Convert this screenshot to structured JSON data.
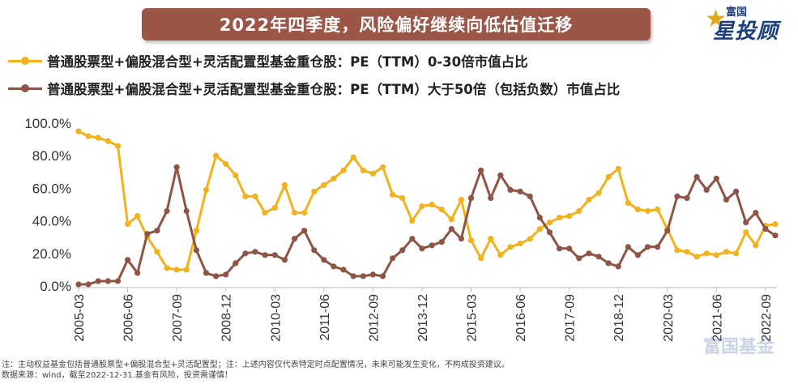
{
  "title": "2022年四季度，风险偏好继续向低估值迁移",
  "logo": {
    "top": "富国",
    "main": "星投顾",
    "watermark": "富国基金"
  },
  "colors": {
    "series1": "#f2b21c",
    "series2": "#8e5446",
    "banner": "#9c5648"
  },
  "notes": [
    "注：主动权益基金包括普通股票型+偏股混合型+灵活配置型；注：上述内容仅代表特定时点配置情况，未来可能发生变化，不构成投资建议。",
    "数据来源：wind，截至2022-12-31.基金有风险，投资需谨慎！"
  ],
  "chart_data": {
    "type": "line",
    "title": "2022年四季度，风险偏好继续向低估值迁移",
    "xlabel": "",
    "ylabel": "",
    "ylim": [
      0,
      100
    ],
    "y_ticks": [
      "0.0%",
      "20.0%",
      "40.0%",
      "60.0%",
      "80.0%",
      "100.0%"
    ],
    "x_tick_labels": [
      "2005-03",
      "2006-06",
      "2007-09",
      "2008-12",
      "2010-03",
      "2011-06",
      "2012-09",
      "2013-12",
      "2015-03",
      "2016-06",
      "2017-09",
      "2018-12",
      "2020-03",
      "2021-06",
      "2022-09"
    ],
    "x_start": "2005-03",
    "x_end": "2022-12",
    "series": [
      {
        "name": "普通股票型+偏股混合型+灵活配置型基金重仓股：PE（TTM）0-30倍市值占比",
        "values": [
          95,
          92,
          91,
          89,
          86,
          38,
          43,
          30,
          21,
          11,
          10,
          10,
          34,
          59,
          80,
          75,
          68,
          55,
          55,
          45,
          48,
          62,
          45,
          45,
          58,
          62,
          66,
          71,
          79,
          71,
          69,
          73,
          56,
          54,
          40,
          49,
          50,
          47,
          41,
          53,
          28,
          17,
          29,
          19,
          24,
          26,
          29,
          35,
          39,
          42,
          43,
          46,
          53,
          57,
          67,
          72,
          51,
          47,
          46,
          47,
          35,
          22,
          21,
          18,
          20,
          19,
          21,
          20,
          33,
          25,
          37,
          38
        ]
      },
      {
        "name": "普通股票型+偏股混合型+灵活配置型基金重仓股：PE（TTM）大于50倍（包括负数）市值占比",
        "values": [
          1,
          1,
          3,
          3,
          3,
          16,
          8,
          32,
          34,
          46,
          73,
          46,
          22,
          8,
          6,
          7,
          14,
          20,
          21,
          19,
          19,
          16,
          29,
          34,
          22,
          16,
          12,
          10,
          6,
          6,
          7,
          6,
          17,
          22,
          29,
          23,
          25,
          27,
          35,
          29,
          54,
          71,
          54,
          68,
          59,
          58,
          55,
          42,
          33,
          23,
          23,
          17,
          20,
          18,
          14,
          12,
          24,
          19,
          24,
          24,
          34,
          55,
          54,
          67,
          59,
          66,
          53,
          58,
          39,
          45,
          35,
          31
        ]
      }
    ]
  }
}
